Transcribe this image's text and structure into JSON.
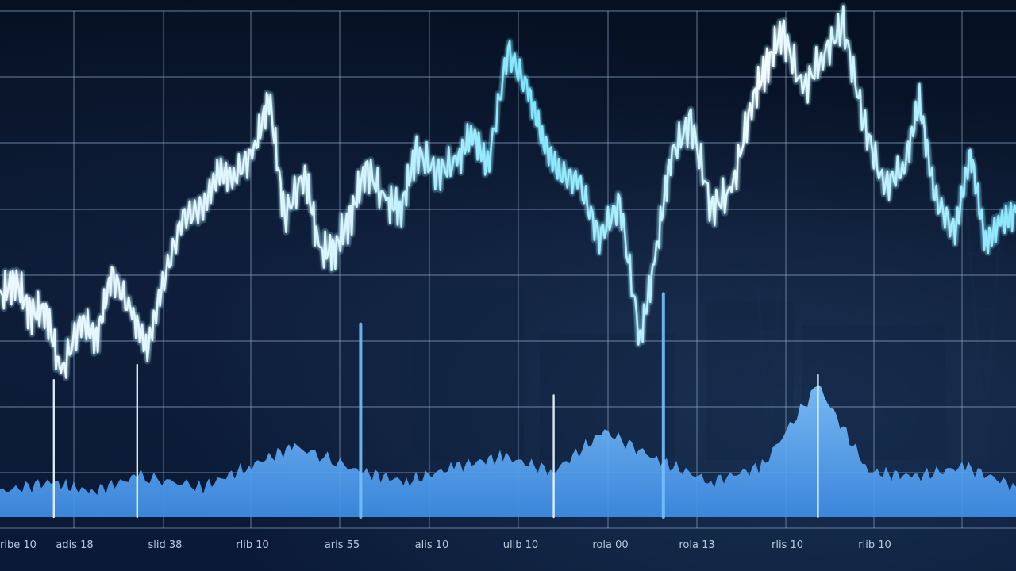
{
  "chart_data": {
    "type": "line",
    "title": "",
    "xlabel": "",
    "ylabel": "",
    "grid": true,
    "xlim": [
      0,
      100
    ],
    "ylim": [
      0,
      100
    ],
    "x_tick_labels": [
      "ribe 10",
      "adis 18",
      "slid 38",
      "rlib 10",
      "aris 55",
      "alis 10",
      "ulib 10",
      "rola 00",
      "rola 13",
      "rlis 10",
      "rlib 10"
    ],
    "series": [
      {
        "kind": "price-line",
        "x": [
          0,
          1.5,
          3,
          4.5,
          6,
          8,
          9.5,
          11,
          13,
          14.5,
          16,
          18,
          20,
          21.5,
          23,
          25,
          26.5,
          28,
          30,
          31.5,
          33,
          34.5,
          36,
          38,
          39.5,
          41,
          43,
          45,
          46.5,
          48,
          50,
          52,
          53.5,
          55,
          57,
          59,
          61,
          63,
          64.5,
          66,
          68,
          70,
          72,
          74,
          75.5,
          77,
          79,
          81,
          83,
          85,
          87,
          89,
          90.5,
          92,
          94,
          95.5,
          97,
          98.5,
          100
        ],
        "y": [
          43,
          47,
          40,
          41,
          28,
          39,
          35,
          48,
          40,
          33,
          46,
          59,
          61,
          68,
          67,
          72,
          83,
          59,
          68,
          52,
          53,
          59,
          69,
          62,
          61,
          72,
          68,
          70,
          76,
          69,
          92,
          84,
          74,
          68,
          66,
          55,
          62,
          35,
          51,
          71,
          78,
          61,
          64,
          82,
          89,
          96,
          84,
          91,
          97,
          78,
          65,
          69,
          82,
          63,
          56,
          72,
          54,
          58,
          60
        ]
      },
      {
        "kind": "volume-baseline",
        "x": [
          0,
          5,
          9,
          13.5,
          20,
          24.5,
          29,
          35.5,
          40,
          45,
          49.5,
          54.5,
          59.5,
          65,
          70,
          75,
          80.5,
          85.5,
          90,
          95,
          100
        ],
        "y": [
          5,
          7,
          5,
          8,
          6,
          10,
          14,
          9,
          7,
          10,
          12,
          9,
          17,
          11,
          7,
          10,
          26,
          9,
          8,
          10,
          6
        ]
      }
    ],
    "spikes": [
      {
        "x": 5.3,
        "y": 27
      },
      {
        "x": 13.5,
        "y": 30
      },
      {
        "x": 35.5,
        "y": 38
      },
      {
        "x": 54.5,
        "y": 24
      },
      {
        "x": 65.3,
        "y": 44
      },
      {
        "x": 80.5,
        "y": 28
      }
    ]
  }
}
